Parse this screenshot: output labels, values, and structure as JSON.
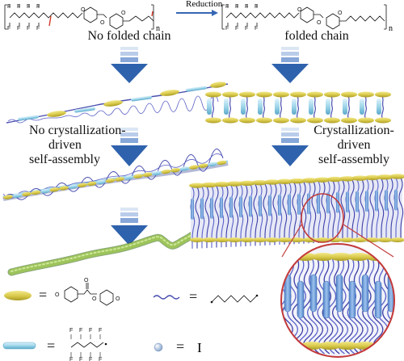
{
  "top": {
    "reaction_label": "Reduction",
    "n_left": "n",
    "n_right": "n",
    "iodine_symbol": "I",
    "carbonyl_o": "O",
    "ether_o": "O",
    "f_atom": "F"
  },
  "left_column": {
    "label1": "No folded chain",
    "label2_line1": "No crystallization-",
    "label2_line2": "driven",
    "label2_line3": "self-assembly"
  },
  "right_column": {
    "label1": "folded chain",
    "label2_line1": "Crystallization-",
    "label2_line2": "driven",
    "label2_line3": "self-assembly"
  },
  "legend": {
    "equals": "=",
    "iodine": "I",
    "o_atom": "O"
  },
  "colors": {
    "arrow_dark": "#2f62ad",
    "arrow_mid": "#5b86c8",
    "arrow_light": "#9fbbe2",
    "arrow_lightest": "#cfdcf0",
    "mesogen_yellow": "#d8c94a",
    "rod_cyan": "#9fd6ea",
    "chain_blue": "#4a4fb0",
    "fiber_green": "#9dc45a",
    "red_marker": "#d03a2a",
    "circle_red": "#c33a3a"
  }
}
